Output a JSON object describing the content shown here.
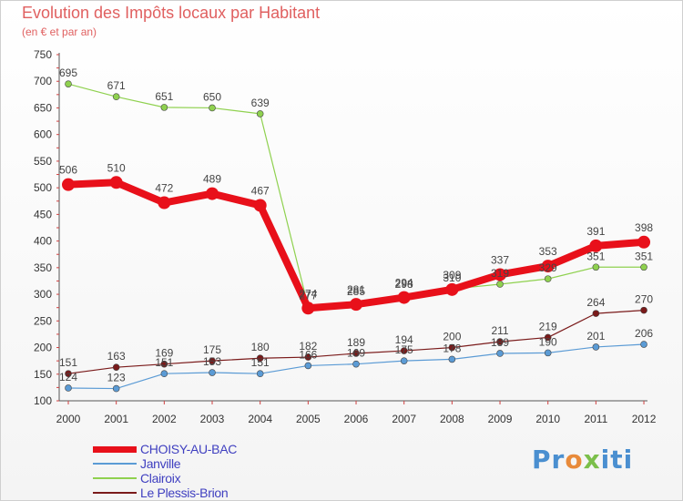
{
  "title": "Evolution des Impôts locaux par Habitant",
  "subtitle": "(en € et par an)",
  "chart_data": {
    "type": "line",
    "title": "Evolution des Impôts locaux par Habitant",
    "subtitle": "(en € et par an)",
    "xlabel": "",
    "ylabel": "",
    "ylim": [
      100,
      750
    ],
    "yticks": [
      100,
      150,
      200,
      250,
      300,
      350,
      400,
      450,
      500,
      550,
      600,
      650,
      700,
      750
    ],
    "categories": [
      "2000",
      "2001",
      "2002",
      "2003",
      "2004",
      "2005",
      "2006",
      "2007",
      "2008",
      "2009",
      "2010",
      "2011",
      "2012"
    ],
    "grid": false,
    "legend": "bottom-left",
    "series": [
      {
        "name": "CHOISY-AU-BAC",
        "color": "#e8101a",
        "values": [
          506,
          510,
          472,
          489,
          467,
          274,
          281,
          294,
          309,
          337,
          353,
          391,
          398
        ]
      },
      {
        "name": "Janville",
        "color": "#5b9bd5",
        "values": [
          124,
          123,
          151,
          153,
          151,
          166,
          169,
          175,
          178,
          189,
          190,
          201,
          206
        ]
      },
      {
        "name": "Clairoix",
        "color": "#8fd14f",
        "values": [
          695,
          671,
          651,
          650,
          639,
          277,
          285,
          298,
          310,
          319,
          329,
          351,
          351
        ]
      },
      {
        "name": "Le Plessis-Brion",
        "color": "#7a1a1a",
        "values": [
          151,
          163,
          169,
          175,
          180,
          182,
          189,
          194,
          200,
          211,
          219,
          264,
          270
        ]
      }
    ]
  },
  "logo_text": [
    "Pr",
    "o",
    "x",
    "iti"
  ]
}
